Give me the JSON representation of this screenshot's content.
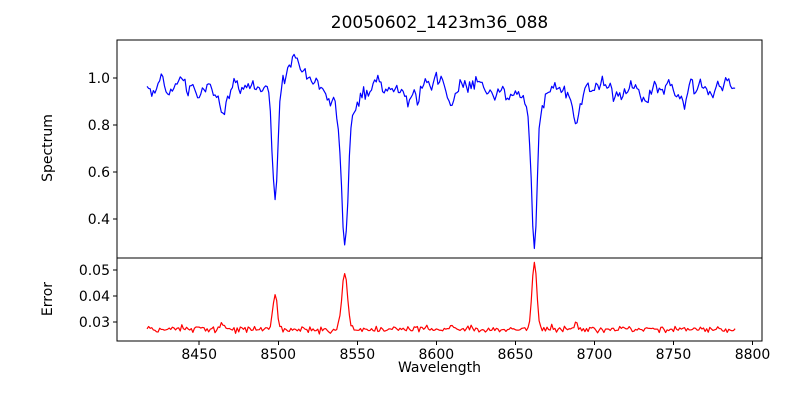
{
  "chart": {
    "title": "20050602_1423m36_088",
    "xlabel": "Wavelength",
    "xticks": [
      {
        "value": 8450,
        "label": "8450"
      },
      {
        "value": 8500,
        "label": "8500"
      },
      {
        "value": 8550,
        "label": "8550"
      },
      {
        "value": 8600,
        "label": "8600"
      },
      {
        "value": 8650,
        "label": "8650"
      },
      {
        "value": 8700,
        "label": "8700"
      },
      {
        "value": 8750,
        "label": "8750"
      },
      {
        "value": 8800,
        "label": "8800"
      }
    ],
    "panels": [
      {
        "ylabel": "Spectrum",
        "yticks": [
          {
            "value": 0.4,
            "label": "0.4"
          },
          {
            "value": 0.6,
            "label": "0.6"
          },
          {
            "value": 0.8,
            "label": "0.8"
          },
          {
            "value": 1.0,
            "label": "1.0"
          }
        ]
      },
      {
        "ylabel": "Error",
        "yticks": [
          {
            "value": 0.03,
            "label": "0.03"
          },
          {
            "value": 0.04,
            "label": "0.04"
          },
          {
            "value": 0.05,
            "label": "0.05"
          }
        ]
      }
    ],
    "colors": {
      "spectrum_line": "#0000ff",
      "error_line": "#ff0000",
      "axes": "#000000",
      "background": "#ffffff"
    }
  },
  "chart_data": {
    "type": "line",
    "title": "20050602_1423m36_088",
    "xlabel": "Wavelength",
    "x_start": 8417,
    "x_end": 8789,
    "x_step": 1,
    "xlim": [
      8398,
      8806
    ],
    "grid": false,
    "seed": 20050602,
    "subplots": [
      {
        "name": "spectrum",
        "ylabel": "Spectrum",
        "color": "#0000ff",
        "ylim": [
          0.234,
          1.162
        ],
        "yticks": [
          0.4,
          0.6,
          0.8,
          1.0
        ],
        "continuum_level": 0.958,
        "noise_sigma": 0.024,
        "continuum_bump": {
          "center": 8510,
          "amplitude": 0.1,
          "sigma": 9,
          "peak_value": 1.13
        },
        "absorption_lines": [
          {
            "center": 8498,
            "core_depth": 0.44,
            "core_sigma": 1.6,
            "wing_depth": 0.06,
            "wing_sigma": 5,
            "min_value": 0.49
          },
          {
            "center": 8542,
            "core_depth": 0.6,
            "core_sigma": 2.0,
            "wing_depth": 0.1,
            "wing_sigma": 8,
            "min_value": 0.29
          },
          {
            "center": 8662,
            "core_depth": 0.57,
            "core_sigma": 1.8,
            "wing_depth": 0.08,
            "wing_sigma": 6,
            "min_value": 0.31
          }
        ],
        "minor_lines": [
          {
            "center": 8449,
            "depth": 0.07,
            "sigma": 1.4
          },
          {
            "center": 8465,
            "depth": 0.13,
            "sigma": 1.6
          },
          {
            "center": 8583,
            "depth": 0.06,
            "sigma": 1.3
          },
          {
            "center": 8610,
            "depth": 0.1,
            "sigma": 1.6
          },
          {
            "center": 8637,
            "depth": 0.05,
            "sigma": 1.3
          },
          {
            "center": 8688,
            "depth": 0.15,
            "sigma": 1.8
          },
          {
            "center": 8713,
            "depth": 0.06,
            "sigma": 1.4
          },
          {
            "center": 8733,
            "depth": 0.07,
            "sigma": 1.5
          },
          {
            "center": 8757,
            "depth": 0.06,
            "sigma": 1.3
          }
        ]
      },
      {
        "name": "error",
        "ylabel": "Error",
        "color": "#ff0000",
        "ylim": [
          0.0227,
          0.0546
        ],
        "yticks": [
          0.03,
          0.04,
          0.05
        ],
        "baseline": 0.0272,
        "noise_sigma": 0.0006,
        "spike_prob": 0.03,
        "spike_amp": 0.0018,
        "peaks": [
          {
            "center": 8498,
            "amplitude": 0.0128,
            "sigma": 1.5,
            "peak_value": 0.04
          },
          {
            "center": 8542,
            "amplitude": 0.0222,
            "sigma": 1.7,
            "peak_value": 0.05
          },
          {
            "center": 8662,
            "amplitude": 0.026,
            "sigma": 1.5,
            "peak_value": 0.053
          },
          {
            "center": 8449,
            "amplitude": 0.001,
            "sigma": 1.3
          },
          {
            "center": 8465,
            "amplitude": 0.0022,
            "sigma": 1.5
          },
          {
            "center": 8610,
            "amplitude": 0.0012,
            "sigma": 1.4
          },
          {
            "center": 8688,
            "amplitude": 0.002,
            "sigma": 1.5
          },
          {
            "center": 8733,
            "amplitude": 0.001,
            "sigma": 1.3
          }
        ]
      }
    ]
  }
}
